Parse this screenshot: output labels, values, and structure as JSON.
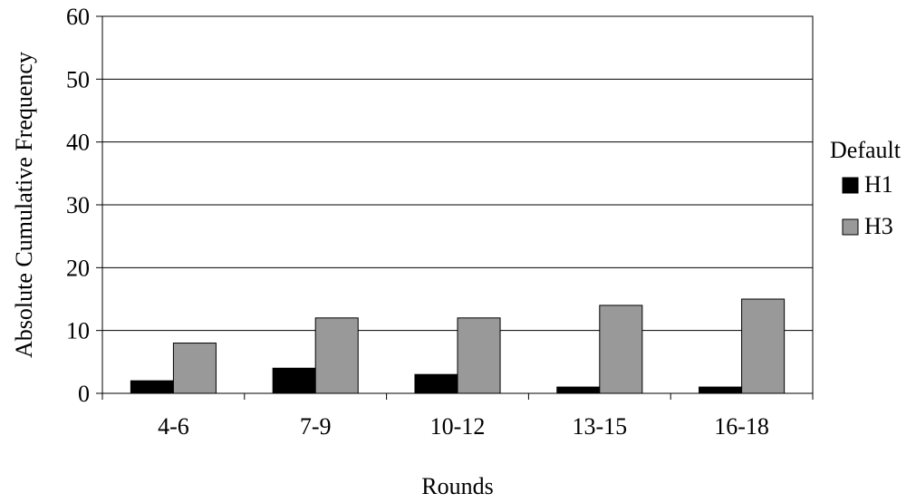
{
  "chart_data": {
    "type": "bar",
    "title": "",
    "xlabel": "Rounds",
    "ylabel": "Absolute Cumulative Frequency",
    "categories": [
      "4-6",
      "7-9",
      "10-12",
      "13-15",
      "16-18"
    ],
    "series": [
      {
        "name": "H1",
        "values": [
          2,
          4,
          3,
          1,
          1
        ],
        "color": "#000000"
      },
      {
        "name": "H3",
        "values": [
          8,
          12,
          12,
          14,
          15
        ],
        "color": "#999999"
      }
    ],
    "ylim": [
      0,
      60
    ],
    "yticks": [
      0,
      10,
      20,
      30,
      40,
      50,
      60
    ],
    "grid": true,
    "legend": {
      "title": "Default",
      "position": "right"
    }
  }
}
